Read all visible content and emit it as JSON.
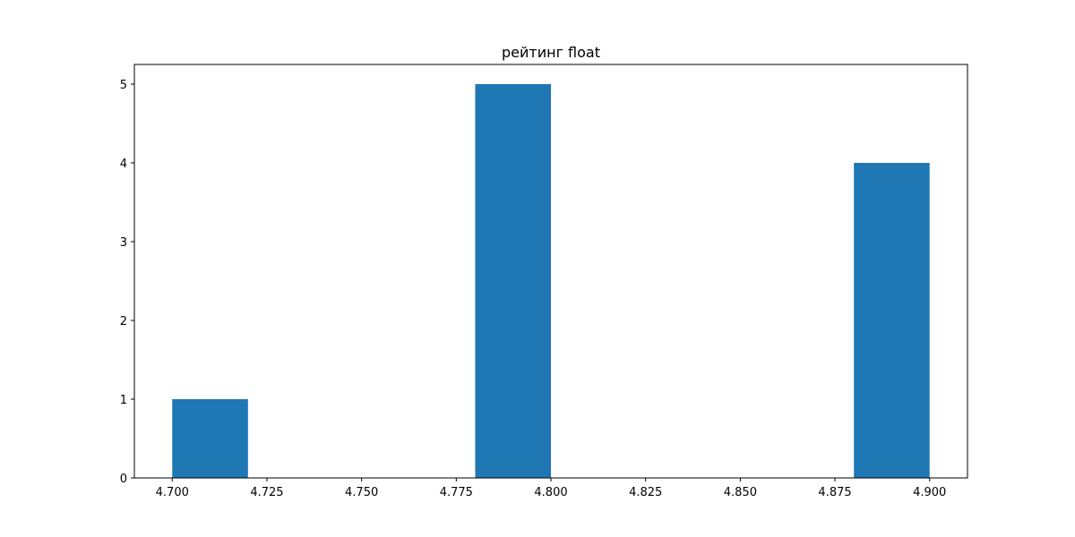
{
  "chart_data": {
    "type": "bar",
    "title": "рейтинг float",
    "xlabel": "",
    "ylabel": "",
    "xlim": [
      4.69,
      4.91
    ],
    "ylim": [
      0,
      5.25
    ],
    "bars": [
      {
        "x_start": 4.7,
        "x_end": 4.72,
        "value": 1
      },
      {
        "x_start": 4.72,
        "x_end": 4.74,
        "value": 0
      },
      {
        "x_start": 4.74,
        "x_end": 4.76,
        "value": 0
      },
      {
        "x_start": 4.76,
        "x_end": 4.78,
        "value": 0
      },
      {
        "x_start": 4.78,
        "x_end": 4.8,
        "value": 5
      },
      {
        "x_start": 4.8,
        "x_end": 4.82,
        "value": 0
      },
      {
        "x_start": 4.82,
        "x_end": 4.84,
        "value": 0
      },
      {
        "x_start": 4.84,
        "x_end": 4.86,
        "value": 0
      },
      {
        "x_start": 4.86,
        "x_end": 4.88,
        "value": 0
      },
      {
        "x_start": 4.88,
        "x_end": 4.9,
        "value": 4
      }
    ],
    "xticks": [
      {
        "value": 4.7,
        "label": "4.700"
      },
      {
        "value": 4.725,
        "label": "4.725"
      },
      {
        "value": 4.75,
        "label": "4.750"
      },
      {
        "value": 4.775,
        "label": "4.775"
      },
      {
        "value": 4.8,
        "label": "4.800"
      },
      {
        "value": 4.825,
        "label": "4.825"
      },
      {
        "value": 4.85,
        "label": "4.850"
      },
      {
        "value": 4.875,
        "label": "4.875"
      },
      {
        "value": 4.9,
        "label": "4.900"
      }
    ],
    "yticks": [
      {
        "value": 0,
        "label": "0"
      },
      {
        "value": 1,
        "label": "1"
      },
      {
        "value": 2,
        "label": "2"
      },
      {
        "value": 3,
        "label": "3"
      },
      {
        "value": 4,
        "label": "4"
      },
      {
        "value": 5,
        "label": "5"
      }
    ],
    "grid": false,
    "legend": "none",
    "colors": {
      "bar": "#1f77b4",
      "axes": "#000000",
      "background": "#ffffff"
    }
  }
}
